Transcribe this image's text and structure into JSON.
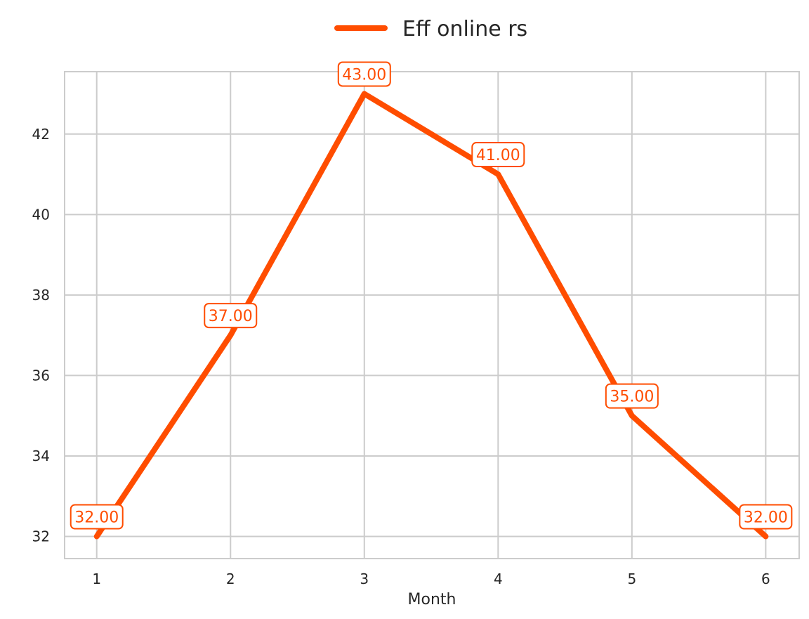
{
  "chart_data": {
    "type": "line",
    "title": "",
    "xlabel": "Month",
    "ylabel": "",
    "x": [
      1,
      2,
      3,
      4,
      5,
      6
    ],
    "x_tick_labels": [
      "1",
      "2",
      "3",
      "4",
      "5",
      "6"
    ],
    "y_ticks": [
      32,
      34,
      36,
      38,
      40,
      42
    ],
    "y_tick_labels": [
      "32",
      "34",
      "36",
      "38",
      "40",
      "42"
    ],
    "xlim": [
      0.76,
      6.25
    ],
    "ylim": [
      31.45,
      43.55
    ],
    "grid": true,
    "legend_position": "top-center",
    "series": [
      {
        "name": "Eff online rs",
        "color": "#FF4D00",
        "values": [
          32,
          37,
          43,
          41,
          35,
          32
        ],
        "data_labels": [
          "32.00",
          "37.00",
          "43.00",
          "41.00",
          "35.00",
          "32.00"
        ]
      }
    ]
  },
  "colors": {
    "background": "#FFFFFF",
    "grid": "#CCCCCC",
    "frame": "#CCCCCC",
    "text": "#262626"
  }
}
